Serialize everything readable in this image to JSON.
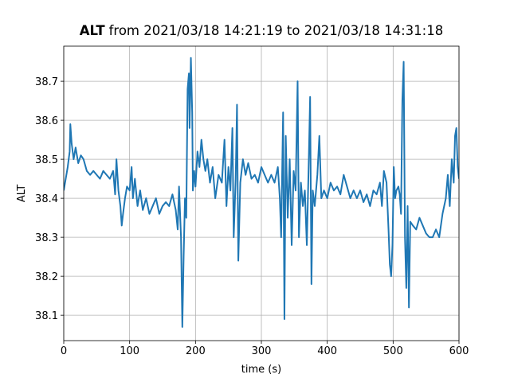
{
  "chart_data": {
    "type": "line",
    "title_variable": "ALT",
    "title_range": "from 2021/03/18 14:21:19 to 2021/03/18 14:31:18",
    "x_label": "time (s)",
    "y_label": "ALT",
    "xlim": [
      0,
      600
    ],
    "xticks": [
      0,
      100,
      200,
      300,
      400,
      500,
      600
    ],
    "ylim": [
      38.035,
      38.79
    ],
    "yticks": [
      38.1,
      38.2,
      38.3,
      38.4,
      38.5,
      38.6,
      38.7
    ],
    "grid": true,
    "series": [
      {
        "color": "#1f77b4",
        "x": [
          0,
          3,
          6,
          9,
          10,
          12,
          15,
          18,
          22,
          26,
          30,
          35,
          40,
          45,
          50,
          55,
          60,
          65,
          70,
          75,
          78,
          80,
          83,
          86,
          88,
          90,
          93,
          96,
          100,
          103,
          105,
          108,
          112,
          116,
          120,
          125,
          130,
          135,
          140,
          145,
          150,
          155,
          160,
          165,
          170,
          173,
          175,
          178,
          180,
          182,
          184,
          186,
          188,
          190,
          191,
          193,
          195,
          196,
          198,
          200,
          203,
          206,
          209,
          212,
          215,
          218,
          222,
          226,
          230,
          235,
          240,
          244,
          247,
          250,
          253,
          256,
          258,
          261,
          263,
          265,
          268,
          272,
          276,
          280,
          285,
          290,
          295,
          300,
          305,
          310,
          315,
          320,
          325,
          328,
          330,
          333,
          335,
          337,
          340,
          343,
          346,
          349,
          352,
          355,
          357,
          360,
          363,
          366,
          369,
          372,
          374,
          376,
          378,
          381,
          385,
          388,
          391,
          395,
          400,
          405,
          410,
          415,
          420,
          425,
          430,
          435,
          440,
          445,
          450,
          455,
          460,
          465,
          470,
          475,
          480,
          483,
          486,
          490,
          493,
          495,
          497,
          499,
          501,
          503,
          505,
          508,
          510,
          512,
          514,
          516,
          518,
          520,
          522,
          524,
          526,
          530,
          535,
          540,
          545,
          550,
          555,
          560,
          565,
          570,
          575,
          580,
          583,
          586,
          589,
          592,
          594,
          596,
          598,
          600
        ],
        "values": [
          38.42,
          38.45,
          38.48,
          38.52,
          38.59,
          38.54,
          38.5,
          38.53,
          38.49,
          38.51,
          38.5,
          38.47,
          38.46,
          38.47,
          38.46,
          38.45,
          38.47,
          38.46,
          38.45,
          38.47,
          38.41,
          38.5,
          38.42,
          38.38,
          38.33,
          38.36,
          38.4,
          38.43,
          38.42,
          38.48,
          38.4,
          38.45,
          38.38,
          38.42,
          38.37,
          38.4,
          38.36,
          38.38,
          38.4,
          38.36,
          38.38,
          38.39,
          38.38,
          38.41,
          38.37,
          38.32,
          38.43,
          38.3,
          38.07,
          38.25,
          38.4,
          38.35,
          38.68,
          38.72,
          38.58,
          38.76,
          38.62,
          38.42,
          38.47,
          38.43,
          38.52,
          38.48,
          38.55,
          38.5,
          38.47,
          38.5,
          38.44,
          38.48,
          38.4,
          38.46,
          38.44,
          38.55,
          38.38,
          38.48,
          38.42,
          38.58,
          38.3,
          38.45,
          38.64,
          38.24,
          38.44,
          38.5,
          38.46,
          38.49,
          38.45,
          38.46,
          38.44,
          38.48,
          38.46,
          38.44,
          38.46,
          38.44,
          38.48,
          38.4,
          38.3,
          38.62,
          38.09,
          38.56,
          38.35,
          38.5,
          38.28,
          38.47,
          38.42,
          38.7,
          38.3,
          38.44,
          38.38,
          38.42,
          38.28,
          38.5,
          38.66,
          38.18,
          38.42,
          38.38,
          38.46,
          38.56,
          38.4,
          38.42,
          38.4,
          38.44,
          38.42,
          38.43,
          38.41,
          38.46,
          38.43,
          38.4,
          38.42,
          38.4,
          38.42,
          38.39,
          38.41,
          38.38,
          38.42,
          38.41,
          38.44,
          38.38,
          38.47,
          38.44,
          38.32,
          38.23,
          38.2,
          38.28,
          38.48,
          38.4,
          38.42,
          38.43,
          38.41,
          38.36,
          38.65,
          38.75,
          38.3,
          38.17,
          38.38,
          38.12,
          38.34,
          38.33,
          38.32,
          38.35,
          38.33,
          38.31,
          38.3,
          38.3,
          38.32,
          38.3,
          38.36,
          38.4,
          38.46,
          38.38,
          38.5,
          38.44,
          38.56,
          38.58,
          38.48,
          38.45
        ]
      }
    ]
  }
}
